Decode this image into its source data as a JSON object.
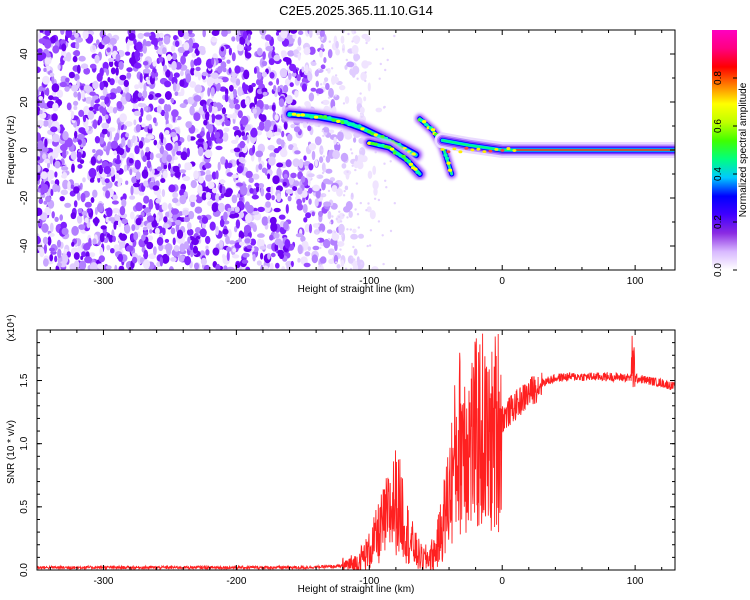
{
  "chart_data": [
    {
      "type": "heatmap",
      "title": "C2E5.2025.365.11.10.G14",
      "xlabel": "Height of straight line (km)",
      "ylabel": "Frequency (Hz)",
      "xlim": [
        -350,
        130
      ],
      "ylim": [
        -50,
        50
      ],
      "xticks": [
        -300,
        -200,
        -100,
        0,
        100
      ],
      "yticks": [
        -40,
        -20,
        0,
        20,
        40
      ],
      "colorbar": {
        "label": "Normalized spectral amplitude",
        "range": [
          0,
          1
        ],
        "ticks": [
          "0.0",
          "0.2",
          "0.4",
          "0.6",
          "0.8"
        ],
        "tick_values": [
          0.0,
          0.2,
          0.4,
          0.6,
          0.8
        ],
        "colors": [
          "#ffffff",
          "#d8b8ff",
          "#8a2be2",
          "#4000ff",
          "#0000ff",
          "#00c8ff",
          "#00ff80",
          "#40ff00",
          "#c0ff00",
          "#ffff00",
          "#ff8000",
          "#ff0000",
          "#ff0080",
          "#ff00c0"
        ]
      },
      "features": {
        "noise_region_km": [
          -350,
          -130
        ],
        "tone_main": {
          "x": [
            -160,
            -140,
            -120,
            -105,
            -90,
            -75,
            -65
          ],
          "freq": [
            15,
            14,
            12,
            9,
            5,
            1,
            -2
          ]
        },
        "tone_branch": {
          "x": [
            -100,
            -85,
            -72,
            -62
          ],
          "freq": [
            3,
            1,
            -4,
            -10
          ]
        },
        "tone_cross": {
          "x": [
            -62,
            -52,
            -45,
            -38
          ],
          "freq": [
            13,
            8,
            2,
            -10
          ]
        },
        "tone_carrier": {
          "x": [
            -45,
            -25,
            0,
            40,
            130
          ],
          "freq": [
            4,
            2,
            0,
            0,
            0
          ]
        }
      }
    },
    {
      "type": "line",
      "xlabel": "Height of straight line (km)",
      "ylabel": "SNR (10 * v/v)",
      "y_scale_label": "(x10⁴)",
      "xlim": [
        -350,
        130
      ],
      "ylim": [
        0,
        1.9
      ],
      "xticks": [
        -300,
        -200,
        -100,
        0,
        100
      ],
      "yticks": [
        "0.0",
        "0.5",
        "1.0",
        "1.5"
      ],
      "ytick_values": [
        0.0,
        0.5,
        1.0,
        1.5
      ],
      "color": "#ff2020",
      "series": [
        {
          "name": "SNR",
          "x": [
            -350,
            -300,
            -250,
            -200,
            -150,
            -120,
            -110,
            -100,
            -90,
            -80,
            -75,
            -70,
            -65,
            -60,
            -55,
            -50,
            -45,
            -40,
            -35,
            -30,
            -25,
            -20,
            -15,
            -10,
            -5,
            0,
            10,
            20,
            30,
            40,
            50,
            60,
            80,
            100,
            110,
            120,
            130
          ],
          "y": [
            0.02,
            0.02,
            0.02,
            0.02,
            0.02,
            0.03,
            0.05,
            0.15,
            0.35,
            0.55,
            0.45,
            0.25,
            0.15,
            0.08,
            0.1,
            0.15,
            0.35,
            0.6,
            0.9,
            1.1,
            1.0,
            1.05,
            1.1,
            0.95,
            1.1,
            1.2,
            1.3,
            1.4,
            1.48,
            1.52,
            1.53,
            1.53,
            1.53,
            1.52,
            1.5,
            1.48,
            1.45
          ]
        }
      ]
    }
  ]
}
